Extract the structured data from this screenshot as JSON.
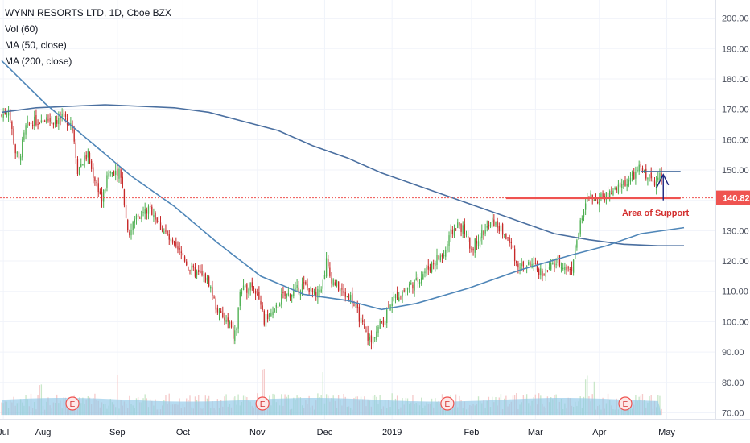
{
  "legend": {
    "title": "WYNN RESORTS LTD, 1D, Cboe BZX",
    "vol": "Vol (60)",
    "ma50": "MA (50, close)",
    "ma200": "MA (200, close)"
  },
  "colors": {
    "up": "#4caf50",
    "down": "#c62828",
    "ma50": "#4f86b8",
    "ma200": "#4a6fa0",
    "volume_ma": "#8fc7e8",
    "support": "#ef5350",
    "arrow": "#1a237e"
  },
  "chart_data": {
    "type": "candlestick",
    "y_axis": {
      "ylim": [
        68,
        206
      ],
      "ticks": [
        "200.00",
        "190.00",
        "180.00",
        "170.00",
        "160.00",
        "150.00",
        "140.00",
        "130.00",
        "120.00",
        "110.00",
        "100.00",
        "90.00",
        "80.00",
        "70.00"
      ]
    },
    "x_axis": {
      "labels": [
        "Jul",
        "Aug",
        "Sep",
        "Oct",
        "Nov",
        "Dec",
        "2019",
        "Feb",
        "Mar",
        "Apr",
        "May"
      ],
      "label_day_index": [
        1,
        24,
        67,
        105,
        148,
        187,
        226,
        272,
        309,
        346,
        385
      ]
    },
    "last_price": "140.82",
    "annotations": {
      "support_label": "Area of Support",
      "earnings_marker": "E"
    },
    "earnings_day_index": [
      41,
      151,
      258,
      361
    ],
    "ma50": [
      [
        0,
        186
      ],
      [
        25,
        172
      ],
      [
        50,
        160
      ],
      [
        75,
        148
      ],
      [
        100,
        138
      ],
      [
        125,
        126
      ],
      [
        150,
        115
      ],
      [
        175,
        109
      ],
      [
        200,
        107
      ],
      [
        220,
        104
      ],
      [
        240,
        106
      ],
      [
        270,
        111
      ],
      [
        300,
        117
      ],
      [
        330,
        122
      ],
      [
        350,
        125
      ],
      [
        370,
        129
      ],
      [
        395,
        131
      ]
    ],
    "ma200": [
      [
        0,
        169
      ],
      [
        20,
        170.5
      ],
      [
        40,
        171
      ],
      [
        60,
        171.5
      ],
      [
        80,
        171
      ],
      [
        100,
        170.5
      ],
      [
        120,
        169
      ],
      [
        140,
        166
      ],
      [
        160,
        163
      ],
      [
        180,
        158
      ],
      [
        200,
        154
      ],
      [
        220,
        149
      ],
      [
        240,
        145
      ],
      [
        260,
        141
      ],
      [
        280,
        137
      ],
      [
        300,
        133
      ],
      [
        320,
        129
      ],
      [
        340,
        127
      ],
      [
        360,
        125.5
      ],
      [
        380,
        125
      ],
      [
        395,
        125
      ]
    ],
    "price_path": [
      [
        0,
        168
      ],
      [
        4,
        170
      ],
      [
        8,
        156
      ],
      [
        10,
        153
      ],
      [
        14,
        164
      ],
      [
        18,
        166
      ],
      [
        22,
        166
      ],
      [
        26,
        167
      ],
      [
        30,
        166
      ],
      [
        35,
        167
      ],
      [
        40,
        166
      ],
      [
        42,
        160
      ],
      [
        44,
        150
      ],
      [
        46,
        152
      ],
      [
        50,
        155
      ],
      [
        52,
        150
      ],
      [
        56,
        144
      ],
      [
        58,
        140
      ],
      [
        62,
        149
      ],
      [
        66,
        150
      ],
      [
        68,
        149
      ],
      [
        70,
        145
      ],
      [
        72,
        134
      ],
      [
        74,
        129
      ],
      [
        78,
        135
      ],
      [
        82,
        136
      ],
      [
        86,
        137
      ],
      [
        88,
        136
      ],
      [
        90,
        133
      ],
      [
        95,
        129
      ],
      [
        100,
        124
      ],
      [
        105,
        122
      ],
      [
        108,
        118
      ],
      [
        112,
        116
      ],
      [
        116,
        115
      ],
      [
        120,
        113
      ],
      [
        124,
        105
      ],
      [
        128,
        101
      ],
      [
        132,
        99
      ],
      [
        134,
        95
      ],
      [
        136,
        98
      ],
      [
        138,
        110
      ],
      [
        142,
        111
      ],
      [
        144,
        113
      ],
      [
        148,
        110
      ],
      [
        152,
        100
      ],
      [
        154,
        102
      ],
      [
        158,
        103
      ],
      [
        162,
        108
      ],
      [
        166,
        109
      ],
      [
        170,
        110
      ],
      [
        174,
        112
      ],
      [
        178,
        111
      ],
      [
        182,
        108
      ],
      [
        186,
        113
      ],
      [
        188,
        120
      ],
      [
        190,
        115
      ],
      [
        194,
        112
      ],
      [
        198,
        109
      ],
      [
        202,
        108
      ],
      [
        206,
        103
      ],
      [
        210,
        97
      ],
      [
        212,
        95
      ],
      [
        214,
        93
      ],
      [
        216,
        96
      ],
      [
        220,
        100
      ],
      [
        222,
        101
      ],
      [
        224,
        106
      ],
      [
        228,
        108
      ],
      [
        232,
        110
      ],
      [
        236,
        112
      ],
      [
        240,
        113
      ],
      [
        244,
        116
      ],
      [
        248,
        118
      ],
      [
        252,
        121
      ],
      [
        256,
        122
      ],
      [
        260,
        129
      ],
      [
        264,
        132
      ],
      [
        268,
        130
      ],
      [
        270,
        126
      ],
      [
        272,
        124
      ],
      [
        276,
        128
      ],
      [
        280,
        130
      ],
      [
        284,
        133
      ],
      [
        288,
        131
      ],
      [
        292,
        128
      ],
      [
        296,
        124
      ],
      [
        298,
        119
      ],
      [
        302,
        118
      ],
      [
        306,
        119
      ],
      [
        310,
        117
      ],
      [
        314,
        116
      ],
      [
        318,
        118
      ],
      [
        322,
        120
      ],
      [
        326,
        118
      ],
      [
        328,
        117
      ],
      [
        330,
        118
      ],
      [
        332,
        124
      ],
      [
        334,
        130
      ],
      [
        338,
        138
      ],
      [
        340,
        142
      ],
      [
        344,
        140
      ],
      [
        348,
        141
      ],
      [
        352,
        142
      ],
      [
        356,
        143
      ],
      [
        358,
        145
      ],
      [
        362,
        146
      ],
      [
        366,
        148
      ],
      [
        370,
        151
      ],
      [
        372,
        149
      ],
      [
        376,
        147
      ],
      [
        378,
        146
      ],
      [
        380,
        149
      ],
      [
        382,
        147
      ]
    ],
    "volume_ma_level": 74.3
  }
}
